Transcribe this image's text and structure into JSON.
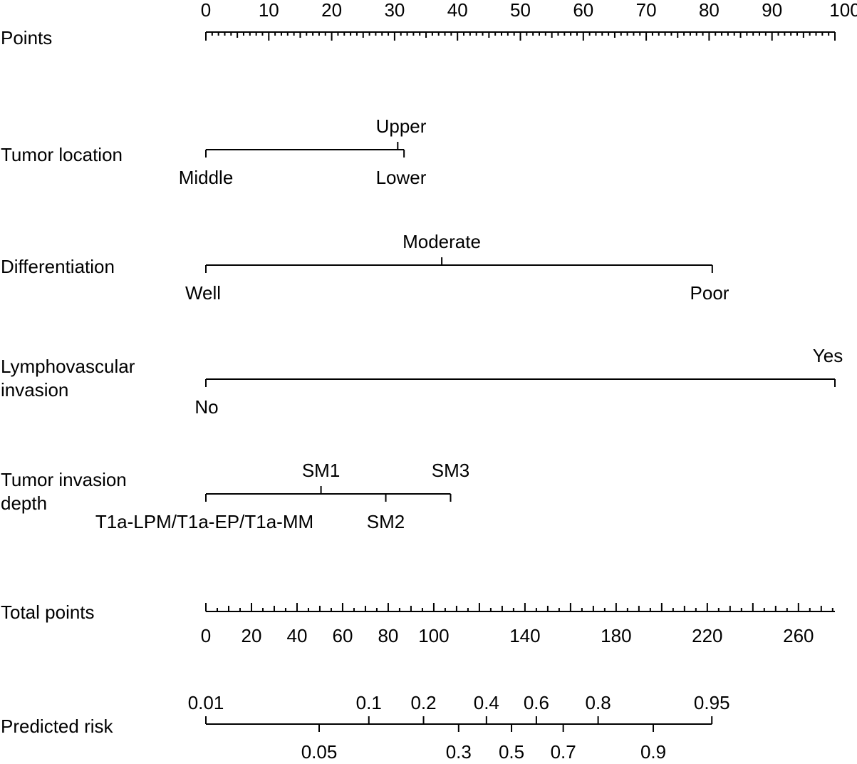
{
  "chart_data": {
    "type": "nomogram",
    "rows": [
      {
        "id": "points",
        "label": [
          "Points"
        ],
        "kind": "scale",
        "min": 0,
        "max": 100,
        "labeled_ticks": [
          0,
          10,
          20,
          30,
          40,
          50,
          60,
          70,
          80,
          90,
          100
        ],
        "minor_step": 1,
        "medium_step": 5,
        "tick_labels_position": "above"
      },
      {
        "id": "tumor-location",
        "label": [
          "Tumor location"
        ],
        "kind": "categorical",
        "levels": [
          {
            "name": "Middle",
            "points": 0,
            "label_position": "below"
          },
          {
            "name": "Upper",
            "points": 30.5,
            "label_position": "above"
          },
          {
            "name": "Lower",
            "points": 31.5,
            "label_position": "below"
          }
        ]
      },
      {
        "id": "differentiation",
        "label": [
          "Differentiation"
        ],
        "kind": "categorical",
        "levels": [
          {
            "name": "Well",
            "points": 0,
            "label_position": "below"
          },
          {
            "name": "Moderate",
            "points": 37.5,
            "label_position": "above"
          },
          {
            "name": "Poor",
            "points": 80.5,
            "label_position": "below"
          }
        ]
      },
      {
        "id": "lymphovascular-invasion",
        "label": [
          "Lymphovascular",
          "invasion"
        ],
        "kind": "categorical",
        "levels": [
          {
            "name": "No",
            "points": 0,
            "label_position": "below"
          },
          {
            "name": "Yes",
            "points": 100,
            "label_position": "above"
          }
        ]
      },
      {
        "id": "tumor-invasion-depth",
        "label": [
          "Tumor invasion",
          "depth"
        ],
        "kind": "categorical",
        "levels": [
          {
            "name": "T1a-LPM/T1a-EP/T1a-MM",
            "points": 0,
            "label_position": "below"
          },
          {
            "name": "SM1",
            "points": 18.3,
            "label_position": "above"
          },
          {
            "name": "SM2",
            "points": 28.6,
            "label_position": "below"
          },
          {
            "name": "SM3",
            "points": 38.9,
            "label_position": "above"
          }
        ]
      },
      {
        "id": "total-points",
        "label": [
          "Total points"
        ],
        "kind": "scale",
        "min": 0,
        "max": 270,
        "labeled_ticks": [
          0,
          20,
          40,
          60,
          80,
          100,
          140,
          180,
          220,
          260
        ],
        "minor_step": 5,
        "medium_step": 10,
        "tick_labels_position": "below"
      },
      {
        "id": "predicted-risk",
        "label": [
          "Predicted risk"
        ],
        "kind": "mapped-scale",
        "maps_to": "total-points",
        "axis_start_total": 0,
        "axis_end_total": 222,
        "ticks": [
          {
            "label": "0.01",
            "total": 0,
            "label_position": "above"
          },
          {
            "label": "0.05",
            "total": 49.7,
            "label_position": "below"
          },
          {
            "label": "0.1",
            "total": 71.5,
            "label_position": "above"
          },
          {
            "label": "0.2",
            "total": 95.5,
            "label_position": "above"
          },
          {
            "label": "0.3",
            "total": 110.9,
            "label_position": "below"
          },
          {
            "label": "0.4",
            "total": 123.1,
            "label_position": "above"
          },
          {
            "label": "0.5",
            "total": 134.1,
            "label_position": "below"
          },
          {
            "label": "0.6",
            "total": 145,
            "label_position": "above"
          },
          {
            "label": "0.7",
            "total": 156.8,
            "label_position": "below"
          },
          {
            "label": "0.8",
            "total": 172.1,
            "label_position": "above"
          },
          {
            "label": "0.9",
            "total": 196.3,
            "label_position": "below"
          },
          {
            "label": "0.95",
            "total": 222,
            "label_position": "above"
          }
        ]
      }
    ]
  }
}
